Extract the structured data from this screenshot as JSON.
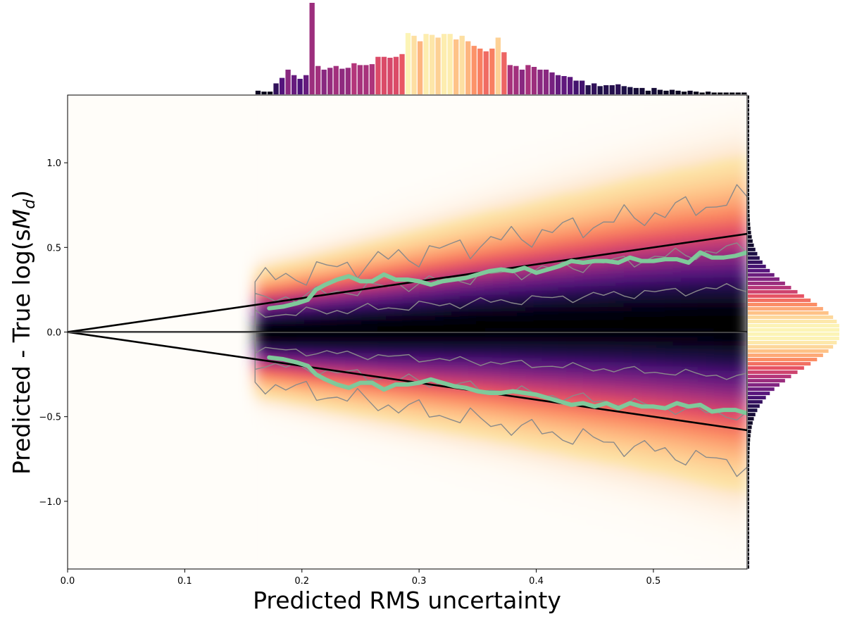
{
  "chart_data": {
    "type": "heatmap",
    "xlabel": "Predicted RMS uncertainty",
    "ylabel_prefix": "Predicted - True log(s",
    "ylabel_symbol": "M",
    "ylabel_subscript": "d",
    "ylabel_suffix": ")",
    "xlim": [
      0.0,
      0.58
    ],
    "ylim": [
      -1.4,
      1.4
    ],
    "xticks": [
      {
        "value": 0.0,
        "label": "0.0"
      },
      {
        "value": 0.1,
        "label": "0.1"
      },
      {
        "value": 0.2,
        "label": "0.2"
      },
      {
        "value": 0.3,
        "label": "0.3"
      },
      {
        "value": 0.4,
        "label": "0.4"
      },
      {
        "value": 0.5,
        "label": "0.5"
      }
    ],
    "yticks": [
      {
        "value": 1.0,
        "label": "1.0"
      },
      {
        "value": 0.5,
        "label": "0.5"
      },
      {
        "value": 0.0,
        "label": "0.0"
      },
      {
        "value": -0.5,
        "label": "−0.5"
      },
      {
        "value": -1.0,
        "label": "−1.0"
      }
    ],
    "colormap": "magma",
    "data_x_start": 0.16,
    "reference_lines": [
      {
        "name": "upper-1sigma",
        "x": [
          0.0,
          0.58
        ],
        "y": [
          0.0,
          0.58
        ]
      },
      {
        "name": "zero",
        "x": [
          0.0,
          0.58
        ],
        "y": [
          0.0,
          0.0
        ]
      },
      {
        "name": "lower-1sigma",
        "x": [
          0.0,
          0.58
        ],
        "y": [
          0.0,
          -0.58
        ]
      }
    ],
    "running_percentile_upper": {
      "x": [
        0.172,
        0.184,
        0.196,
        0.205,
        0.212,
        0.22,
        0.23,
        0.24,
        0.25,
        0.26,
        0.27,
        0.28,
        0.29,
        0.3,
        0.31,
        0.32,
        0.33,
        0.34,
        0.35,
        0.36,
        0.37,
        0.38,
        0.39,
        0.4,
        0.41,
        0.42,
        0.43,
        0.44,
        0.45,
        0.46,
        0.47,
        0.48,
        0.49,
        0.5,
        0.51,
        0.52,
        0.53,
        0.54,
        0.55,
        0.56,
        0.57,
        0.58
      ],
      "y": [
        0.14,
        0.15,
        0.17,
        0.19,
        0.25,
        0.28,
        0.31,
        0.33,
        0.3,
        0.3,
        0.34,
        0.31,
        0.31,
        0.3,
        0.28,
        0.3,
        0.31,
        0.32,
        0.34,
        0.36,
        0.37,
        0.36,
        0.38,
        0.35,
        0.37,
        0.39,
        0.42,
        0.41,
        0.42,
        0.42,
        0.41,
        0.44,
        0.42,
        0.42,
        0.43,
        0.43,
        0.41,
        0.47,
        0.44,
        0.44,
        0.45,
        0.47
      ]
    },
    "running_percentile_lower": {
      "x": [
        0.172,
        0.184,
        0.196,
        0.205,
        0.212,
        0.22,
        0.23,
        0.24,
        0.25,
        0.26,
        0.27,
        0.28,
        0.29,
        0.3,
        0.31,
        0.32,
        0.33,
        0.34,
        0.35,
        0.36,
        0.37,
        0.38,
        0.39,
        0.4,
        0.41,
        0.42,
        0.43,
        0.44,
        0.45,
        0.46,
        0.47,
        0.48,
        0.49,
        0.5,
        0.51,
        0.52,
        0.53,
        0.54,
        0.55,
        0.56,
        0.57,
        0.58
      ],
      "y": [
        -0.15,
        -0.16,
        -0.18,
        -0.2,
        -0.25,
        -0.28,
        -0.31,
        -0.33,
        -0.3,
        -0.3,
        -0.34,
        -0.31,
        -0.31,
        -0.3,
        -0.28,
        -0.3,
        -0.32,
        -0.33,
        -0.35,
        -0.36,
        -0.36,
        -0.35,
        -0.36,
        -0.37,
        -0.39,
        -0.41,
        -0.43,
        -0.42,
        -0.44,
        -0.42,
        -0.45,
        -0.42,
        -0.44,
        -0.44,
        -0.45,
        -0.42,
        -0.44,
        -0.43,
        -0.47,
        -0.46,
        -0.46,
        -0.48
      ]
    },
    "median_ridge": {
      "x": [
        0.16,
        0.2,
        0.24,
        0.28,
        0.32,
        0.36,
        0.4,
        0.44,
        0.48,
        0.52,
        0.56,
        0.58
      ],
      "y": [
        0.0,
        0.005,
        0.012,
        0.02,
        0.03,
        0.04,
        0.045,
        0.05,
        0.055,
        0.055,
        0.05,
        0.05
      ]
    },
    "top_histogram": {
      "xrange": [
        0.16,
        0.58
      ],
      "counts": [
        0.04,
        0.03,
        0.03,
        0.12,
        0.18,
        0.27,
        0.21,
        0.17,
        0.21,
        1.0,
        0.31,
        0.27,
        0.29,
        0.31,
        0.28,
        0.29,
        0.34,
        0.32,
        0.32,
        0.33,
        0.41,
        0.41,
        0.4,
        0.41,
        0.44,
        0.67,
        0.64,
        0.58,
        0.66,
        0.65,
        0.62,
        0.66,
        0.66,
        0.6,
        0.64,
        0.58,
        0.53,
        0.5,
        0.47,
        0.5,
        0.62,
        0.46,
        0.32,
        0.31,
        0.27,
        0.32,
        0.3,
        0.27,
        0.27,
        0.24,
        0.21,
        0.2,
        0.19,
        0.15,
        0.15,
        0.1,
        0.12,
        0.09,
        0.1,
        0.1,
        0.11,
        0.09,
        0.08,
        0.07,
        0.07,
        0.04,
        0.07,
        0.05,
        0.04,
        0.05,
        0.04,
        0.03,
        0.04,
        0.03,
        0.02,
        0.03,
        0.02,
        0.02,
        0.02,
        0.02,
        0.02,
        0.02
      ]
    },
    "right_histogram": {
      "yrange": [
        -1.4,
        1.4
      ],
      "bin_width": 0.025,
      "sigma": 0.21,
      "peak_value": 0.0
    },
    "contours": [
      {
        "level": "outer"
      },
      {
        "level": "middle"
      },
      {
        "level": "inner"
      }
    ]
  }
}
